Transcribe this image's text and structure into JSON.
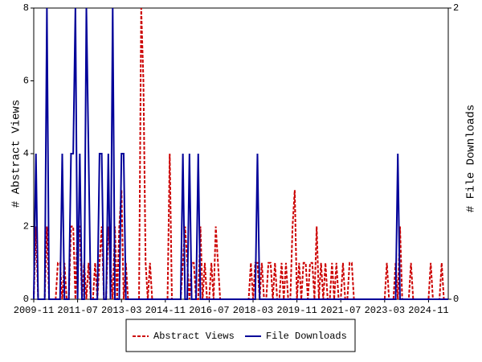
{
  "chart_data": {
    "type": "line",
    "y_label": "# Abstract Views",
    "y2_label": "# File Downloads",
    "x": [
      "2009-11",
      "2009-12",
      "2010-01",
      "2010-02",
      "2010-03",
      "2010-04",
      "2010-05",
      "2010-06",
      "2010-07",
      "2010-08",
      "2010-09",
      "2010-10",
      "2010-11",
      "2010-12",
      "2011-01",
      "2011-02",
      "2011-03",
      "2011-04",
      "2011-05",
      "2011-06",
      "2011-07",
      "2011-08",
      "2011-09",
      "2011-10",
      "2011-11",
      "2011-12",
      "2012-01",
      "2012-02",
      "2012-03",
      "2012-04",
      "2012-05",
      "2012-06",
      "2012-07",
      "2012-08",
      "2012-09",
      "2012-10",
      "2012-11",
      "2012-12",
      "2013-01",
      "2013-02",
      "2013-03",
      "2013-04",
      "2013-05",
      "2013-06",
      "2013-07",
      "2013-08",
      "2013-09",
      "2013-10",
      "2013-11",
      "2013-12",
      "2014-01",
      "2014-02",
      "2014-03",
      "2014-04",
      "2014-05",
      "2014-06",
      "2014-07",
      "2014-08",
      "2014-09",
      "2014-10",
      "2014-11",
      "2014-12",
      "2015-01",
      "2015-02",
      "2015-03",
      "2015-04",
      "2015-05",
      "2015-06",
      "2015-07",
      "2015-08",
      "2015-09",
      "2015-10",
      "2015-11",
      "2015-12",
      "2016-01",
      "2016-02",
      "2016-03",
      "2016-04",
      "2016-05",
      "2016-06",
      "2016-07",
      "2016-08",
      "2016-09",
      "2016-10",
      "2016-11",
      "2016-12",
      "2017-01",
      "2017-02",
      "2017-03",
      "2017-04",
      "2017-05",
      "2017-06",
      "2017-07",
      "2017-08",
      "2017-09",
      "2017-10",
      "2017-11",
      "2017-12",
      "2018-01",
      "2018-02",
      "2018-03",
      "2018-04",
      "2018-05",
      "2018-06",
      "2018-07",
      "2018-08",
      "2018-09",
      "2018-10",
      "2018-11",
      "2018-12",
      "2019-01",
      "2019-02",
      "2019-03",
      "2019-04",
      "2019-05",
      "2019-06",
      "2019-07",
      "2019-08",
      "2019-09",
      "2019-10",
      "2019-11",
      "2019-12",
      "2020-01",
      "2020-02",
      "2020-03",
      "2020-04",
      "2020-05",
      "2020-06",
      "2020-07",
      "2020-08",
      "2020-09",
      "2020-10",
      "2020-11",
      "2020-12",
      "2021-01",
      "2021-02",
      "2021-03",
      "2021-04",
      "2021-05",
      "2021-06",
      "2021-07",
      "2021-08",
      "2021-09",
      "2021-10",
      "2021-11",
      "2021-12",
      "2022-01",
      "2022-02",
      "2022-03",
      "2022-04",
      "2022-05",
      "2022-06",
      "2022-07",
      "2022-08",
      "2022-09",
      "2022-10",
      "2022-11",
      "2022-12",
      "2023-01",
      "2023-02",
      "2023-03",
      "2023-04",
      "2023-05",
      "2023-06",
      "2023-07",
      "2023-08",
      "2023-09",
      "2023-10",
      "2023-11",
      "2023-12",
      "2024-01",
      "2024-02",
      "2024-03",
      "2024-04",
      "2024-05",
      "2024-06",
      "2024-07",
      "2024-08",
      "2024-09",
      "2024-10",
      "2024-11",
      "2024-12",
      "2025-01",
      "2025-02",
      "2025-03",
      "2025-04",
      "2025-05",
      "2025-06",
      "2025-07",
      "2025-08"
    ],
    "xticks": [
      "2009-11",
      "2011-07",
      "2013-03",
      "2014-11",
      "2016-07",
      "2018-03",
      "2019-11",
      "2021-07",
      "2023-03",
      "2024-11"
    ],
    "series": [
      {
        "name": "Abstract Views",
        "color": "#cc0000",
        "dash": true,
        "values": [
          0,
          2,
          0,
          0,
          0,
          0,
          2,
          0,
          0,
          0,
          0,
          1,
          1,
          0,
          1,
          0,
          0,
          2,
          2,
          0,
          2,
          2,
          0,
          1,
          0,
          1,
          0,
          0,
          1,
          0,
          1,
          2,
          0,
          0,
          2,
          1,
          0,
          2,
          0,
          2,
          3,
          0,
          1,
          0,
          0,
          0,
          0,
          0,
          0,
          8,
          6,
          1,
          0,
          1,
          0,
          0,
          0,
          0,
          0,
          0,
          0,
          0,
          4,
          0,
          0,
          0,
          0,
          0,
          1,
          2,
          1,
          0,
          1,
          1,
          0,
          0,
          2,
          0,
          1,
          0,
          0,
          1,
          0,
          2,
          1,
          0,
          0,
          0,
          0,
          0,
          0,
          0,
          0,
          0,
          0,
          0,
          0,
          0,
          0,
          1,
          0,
          1,
          1,
          0,
          1,
          0,
          0,
          1,
          1,
          0,
          1,
          0,
          0,
          1,
          0,
          1,
          0,
          0,
          2,
          3,
          0,
          1,
          0,
          1,
          1,
          0,
          1,
          1,
          0,
          2,
          0,
          1,
          0,
          1,
          0,
          0,
          1,
          0,
          1,
          0,
          0,
          1,
          0,
          0,
          1,
          1,
          0,
          0,
          0,
          0,
          0,
          0,
          0,
          0,
          0,
          0,
          0,
          0,
          0,
          0,
          0,
          1,
          0,
          0,
          0,
          1,
          0,
          2,
          0,
          0,
          0,
          0,
          1,
          0,
          0,
          0,
          0,
          0,
          0,
          0,
          0,
          1,
          0,
          0,
          0,
          0,
          1,
          0,
          0,
          0
        ]
      },
      {
        "name": "File Downloads",
        "color": "#000099",
        "axis": "y2",
        "values": [
          0,
          1,
          0,
          0,
          0,
          0,
          2,
          0,
          0,
          0,
          0,
          0,
          0,
          1,
          0,
          0,
          0,
          1,
          1,
          2,
          0,
          1,
          0,
          0,
          2,
          1,
          0,
          0,
          0,
          0,
          1,
          1,
          0,
          0,
          1,
          0,
          2,
          0,
          0,
          0,
          1,
          1,
          0,
          0,
          0,
          0,
          0,
          0,
          0,
          0,
          0,
          0,
          0,
          0,
          0,
          0,
          0,
          0,
          0,
          0,
          0,
          0,
          0,
          0,
          0,
          0,
          0,
          0,
          1,
          0,
          0,
          1,
          0,
          0,
          0,
          1,
          0,
          0,
          0,
          0,
          0,
          0,
          0,
          0,
          0,
          0,
          0,
          0,
          0,
          0,
          0,
          0,
          0,
          0,
          0,
          0,
          0,
          0,
          0,
          0,
          0,
          0,
          1,
          0,
          0,
          0,
          0,
          0,
          0,
          0,
          0,
          0,
          0,
          0,
          0,
          0,
          0,
          0,
          0,
          0,
          0,
          0,
          0,
          0,
          0,
          0,
          0,
          0,
          0,
          0,
          0,
          0,
          0,
          0,
          0,
          0,
          0,
          0,
          0,
          0,
          0,
          0,
          0,
          0,
          0,
          0,
          0,
          0,
          0,
          0,
          0,
          0,
          0,
          0,
          0,
          0,
          0,
          0,
          0,
          0,
          0,
          0,
          0,
          0,
          0,
          0,
          1,
          0,
          0,
          0,
          0,
          0,
          0,
          0,
          0,
          0,
          0,
          0,
          0,
          0,
          0,
          0,
          0,
          0,
          0,
          0,
          0,
          0,
          0,
          0
        ]
      }
    ],
    "ylim": [
      0,
      8
    ],
    "yticks": [
      0,
      2,
      4,
      6,
      8
    ],
    "y2lim": [
      0,
      2
    ],
    "y2ticks": [
      0,
      2
    ],
    "legend": "bottom"
  }
}
